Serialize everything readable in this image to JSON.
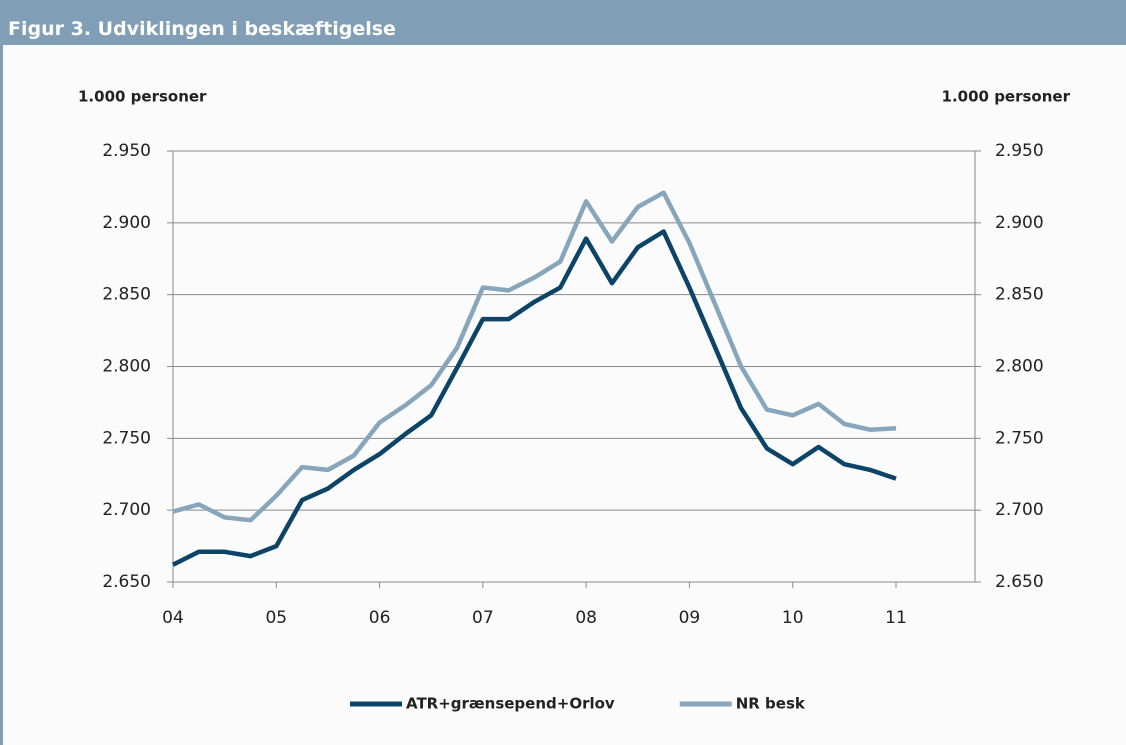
{
  "chart_data": {
    "type": "line",
    "title": "Figur 3. Udviklingen i beskæftigelse",
    "y_label": "1.000 personer",
    "y2_label": "1.000 personer",
    "categories": [
      "04",
      null,
      null,
      null,
      "05",
      null,
      null,
      null,
      "06",
      null,
      null,
      null,
      "07",
      null,
      null,
      null,
      "08",
      null,
      null,
      null,
      "09",
      null,
      null,
      null,
      "10",
      null,
      null,
      null,
      "11"
    ],
    "series": [
      {
        "name": "ATR+grænsepend+Orlov",
        "color": "#0c4467",
        "values": [
          2662,
          2671,
          2671,
          2668,
          2675,
          2707,
          2715,
          2728,
          2739,
          2753,
          2766,
          2799,
          2833,
          2833,
          2845,
          2855,
          2889,
          2858,
          2883,
          2894,
          2855,
          2813,
          2771,
          2743,
          2732,
          2744,
          2732,
          2728,
          2722
        ]
      },
      {
        "name": "NR besk",
        "color": "#88a6bb",
        "values": [
          2699,
          2704,
          2695,
          2693,
          2710,
          2730,
          2728,
          2738,
          2761,
          2773,
          2787,
          2813,
          2855,
          2853,
          2862,
          2873,
          2915,
          2887,
          2911,
          2921,
          2886,
          2843,
          2800,
          2770,
          2766,
          2774,
          2760,
          2756,
          2757
        ]
      }
    ],
    "ylim": [
      2650,
      2950
    ],
    "yticks": [
      {
        "value": 2650,
        "label": "2.650"
      },
      {
        "value": 2700,
        "label": "2.700"
      },
      {
        "value": 2750,
        "label": "2.750"
      },
      {
        "value": 2800,
        "label": "2.800"
      },
      {
        "value": 2850,
        "label": "2.850"
      },
      {
        "value": 2900,
        "label": "2.900"
      },
      {
        "value": 2950,
        "label": "2.950"
      }
    ],
    "y2lim": [
      2650,
      2950
    ],
    "y2ticks": [
      {
        "value": 2650,
        "label": "2.650"
      },
      {
        "value": 2700,
        "label": "2.700"
      },
      {
        "value": 2750,
        "label": "2.750"
      },
      {
        "value": 2800,
        "label": "2.800"
      },
      {
        "value": 2850,
        "label": "2.850"
      },
      {
        "value": 2900,
        "label": "2.900"
      },
      {
        "value": 2950,
        "label": "2.950"
      }
    ],
    "grid": true,
    "legend": "bottom"
  }
}
